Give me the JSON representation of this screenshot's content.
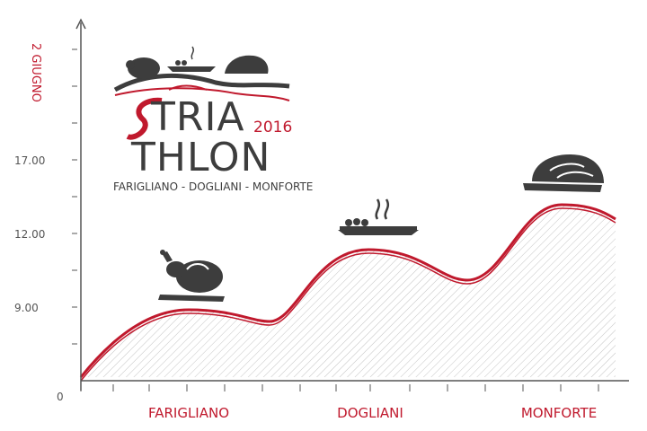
{
  "logo": {
    "title_line1": "TRIA",
    "title_line2": "THLON",
    "year": "2016",
    "subtitle": "FARIGLIANO - DOGLIANI - MONFORTE"
  },
  "chart_data": {
    "type": "area",
    "title": "STRIATHLON",
    "date_label": "2 GIUGNO",
    "y_ticks": [
      {
        "label": "0",
        "value": 0
      },
      {
        "label": "9.00",
        "value": 9
      },
      {
        "label": "12.00",
        "value": 12
      },
      {
        "label": "17.00",
        "value": 17
      }
    ],
    "categories": [
      "FARIGLIANO",
      "DOGLIANI",
      "MONFORTE"
    ],
    "stops": [
      {
        "location": "FARIGLIANO",
        "course": "chicken",
        "icon": "roast-chicken-icon"
      },
      {
        "location": "DOGLIANI",
        "course": "pasta",
        "icon": "steaming-dish-icon"
      },
      {
        "location": "MONFORTE",
        "course": "meat",
        "icon": "roast-meat-icon"
      }
    ],
    "grid": false,
    "legend": "none"
  },
  "colors": {
    "accent": "#c0192d",
    "dark": "#3d3d3d",
    "axis": "#555555",
    "hatch": "#bdbdbd"
  }
}
